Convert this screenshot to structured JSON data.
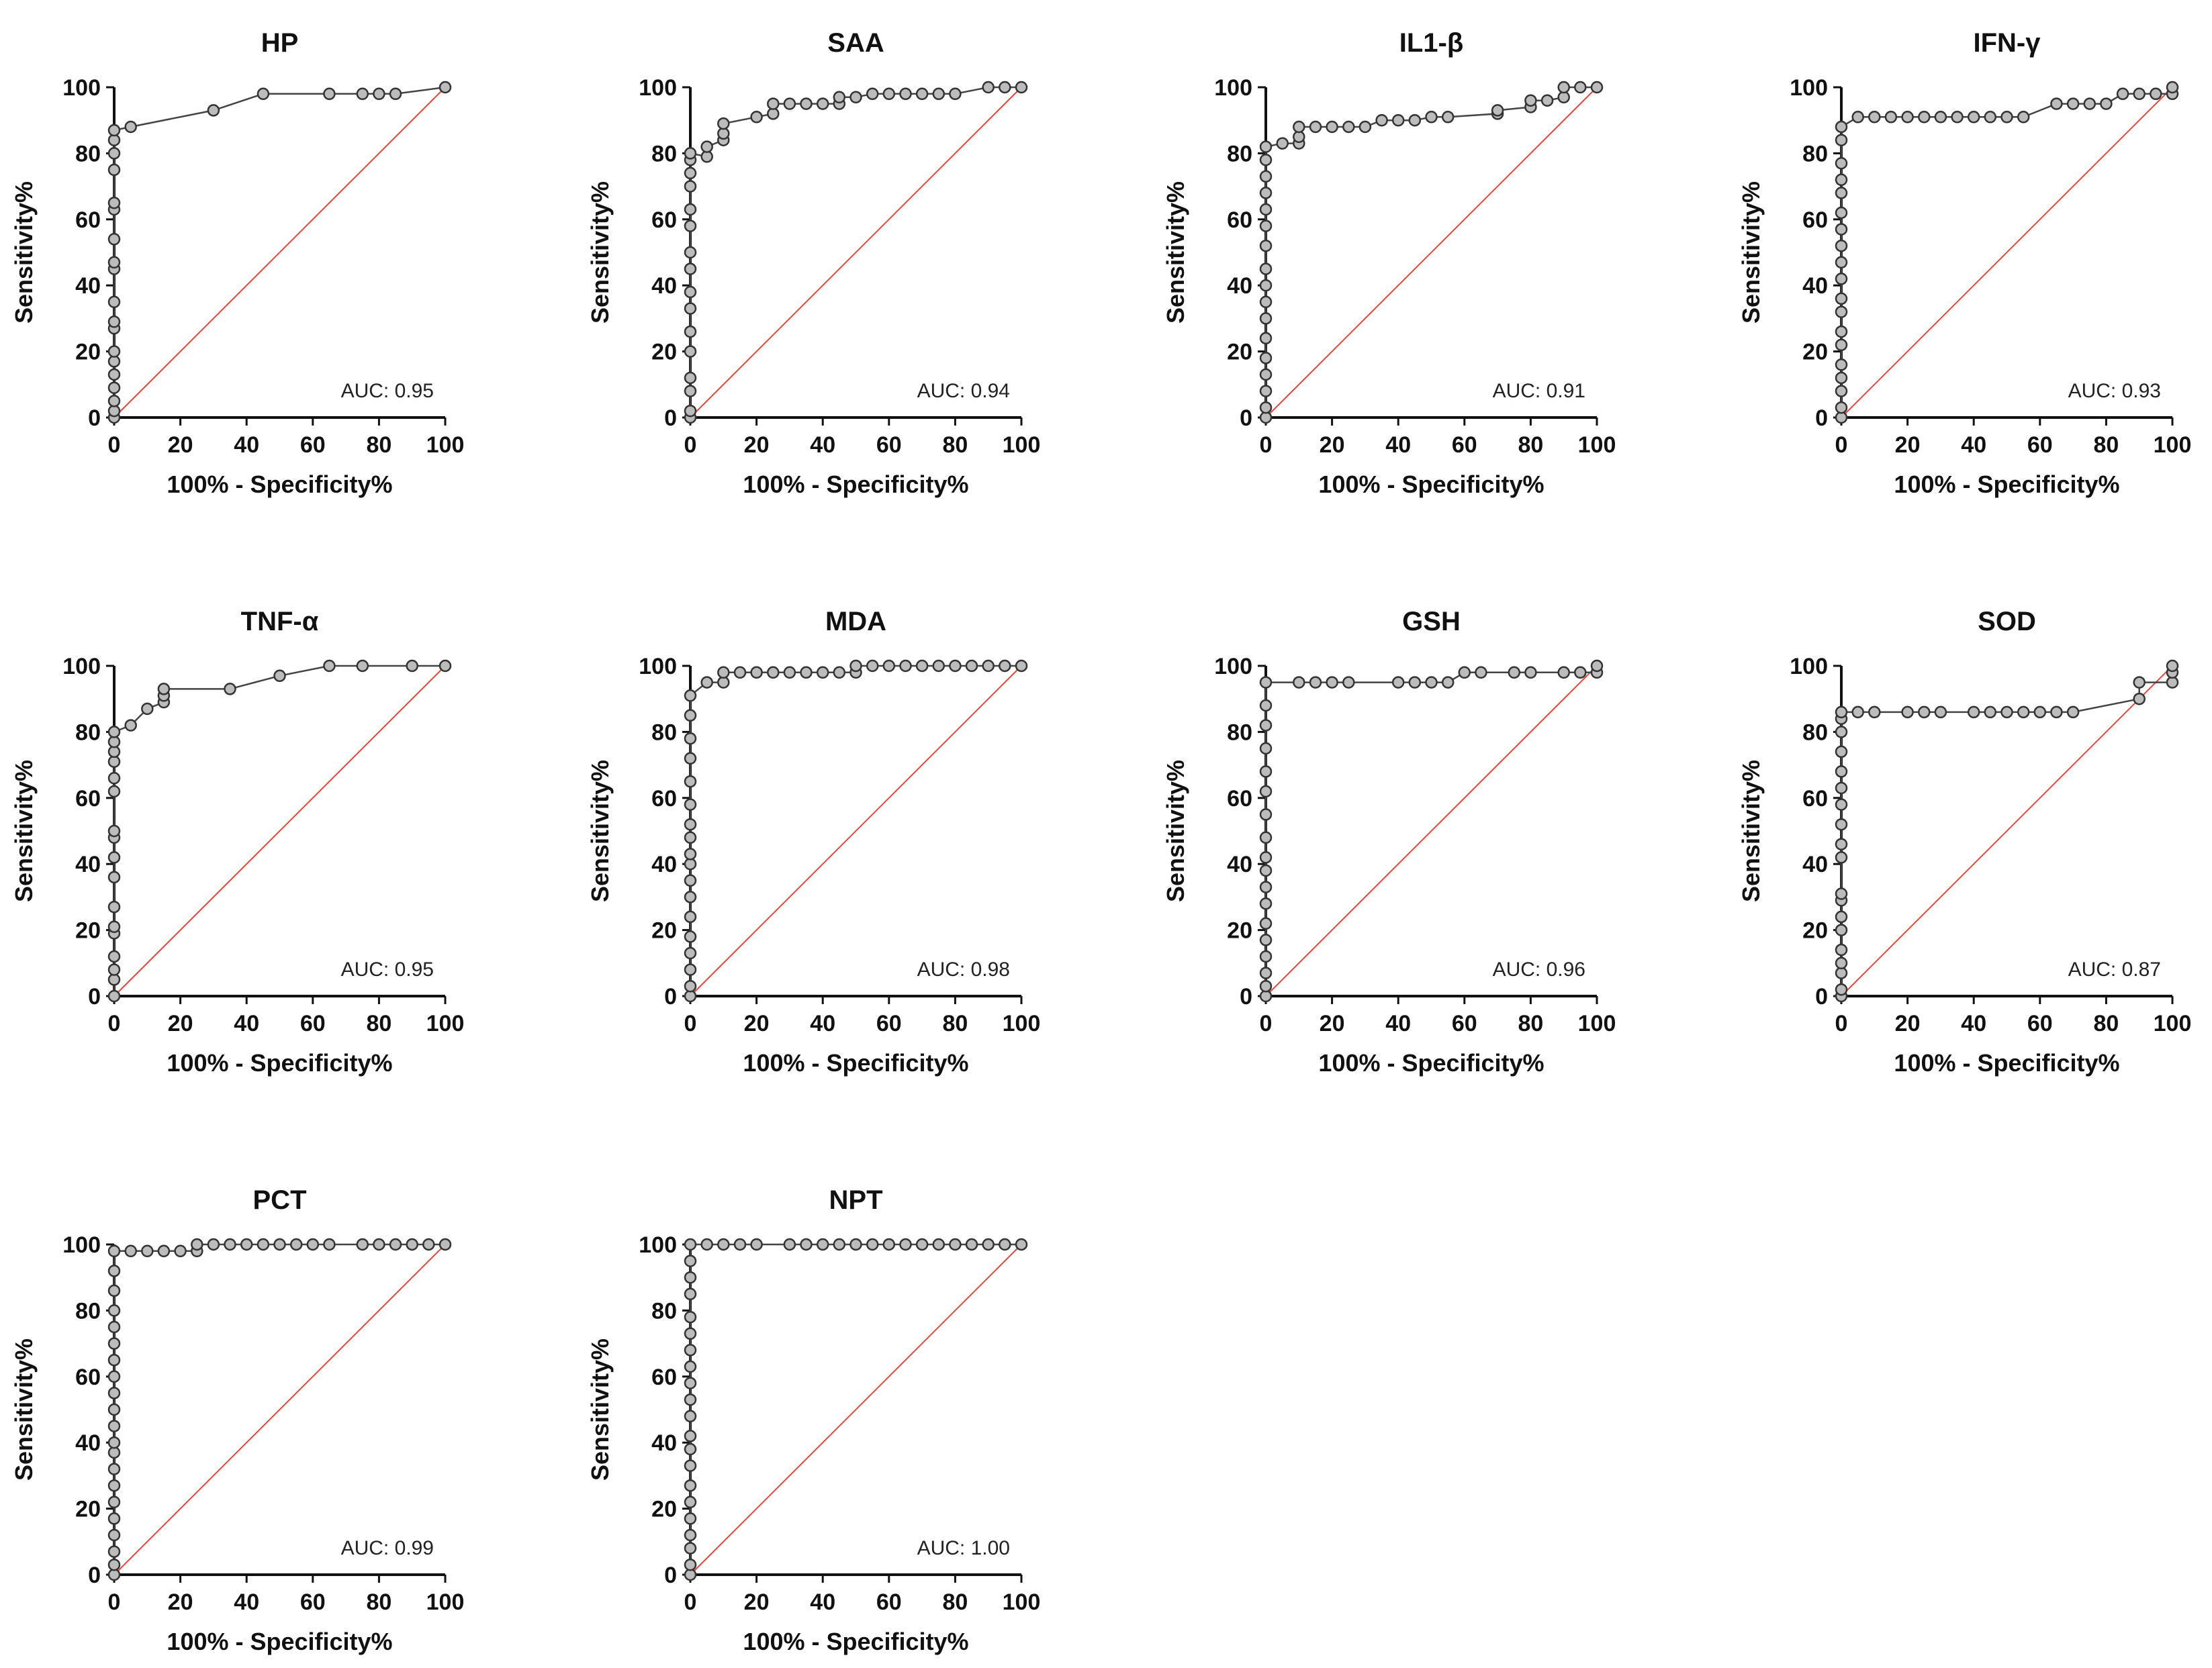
{
  "colors": {
    "roc_line": "#444444",
    "reference_line": "#e8453c",
    "marker_fill": "#bcbcbc",
    "marker_edge": "#333333",
    "axis": "#111111"
  },
  "chart_data": [
    {
      "type": "line",
      "title": "HP",
      "xlabel": "100% - Specificity%",
      "ylabel": "Sensitivity%",
      "xlim": [
        0,
        100
      ],
      "ylim": [
        0,
        100
      ],
      "xticks": [
        0,
        20,
        40,
        60,
        80,
        100
      ],
      "yticks": [
        0,
        20,
        40,
        60,
        80,
        100
      ],
      "auc_text": "AUC: 0.95",
      "x": [
        0,
        0,
        0,
        0,
        0,
        0,
        0,
        0,
        0,
        0,
        0,
        0,
        0,
        0,
        0,
        0,
        0,
        0,
        0,
        5,
        30,
        45,
        65,
        75,
        80,
        85,
        100
      ],
      "y": [
        0,
        2,
        5,
        9,
        13,
        17,
        20,
        27,
        29,
        35,
        45,
        47,
        54,
        63,
        65,
        75,
        80,
        84,
        87,
        88,
        93,
        98,
        98,
        98,
        98,
        98,
        100
      ]
    },
    {
      "type": "line",
      "title": "SAA",
      "xlabel": "100% - Specificity%",
      "ylabel": "Sensitivity%",
      "xlim": [
        0,
        100
      ],
      "ylim": [
        0,
        100
      ],
      "xticks": [
        0,
        20,
        40,
        60,
        80,
        100
      ],
      "yticks": [
        0,
        20,
        40,
        60,
        80,
        100
      ],
      "auc_text": "AUC: 0.94",
      "x": [
        0,
        0,
        0,
        0,
        0,
        0,
        0,
        0,
        0,
        0,
        0,
        0,
        0,
        0,
        0,
        0,
        5,
        5,
        10,
        10,
        10,
        20,
        25,
        25,
        30,
        35,
        40,
        45,
        45,
        50,
        55,
        60,
        65,
        70,
        75,
        80,
        90,
        95,
        100
      ],
      "y": [
        0,
        2,
        8,
        12,
        20,
        26,
        33,
        38,
        45,
        50,
        58,
        63,
        70,
        74,
        78,
        80,
        79,
        82,
        84,
        86,
        89,
        91,
        92,
        95,
        95,
        95,
        95,
        95,
        97,
        97,
        98,
        98,
        98,
        98,
        98,
        98,
        100,
        100,
        100
      ]
    },
    {
      "type": "line",
      "title": "IL1-β",
      "xlabel": "100% - Specificity%",
      "ylabel": "Sensitivity%",
      "xlim": [
        0,
        100
      ],
      "ylim": [
        0,
        100
      ],
      "xticks": [
        0,
        20,
        40,
        60,
        80,
        100
      ],
      "yticks": [
        0,
        20,
        40,
        60,
        80,
        100
      ],
      "auc_text": "AUC: 0.91",
      "x": [
        0,
        0,
        0,
        0,
        0,
        0,
        0,
        0,
        0,
        0,
        0,
        0,
        0,
        0,
        0,
        0,
        0,
        5,
        10,
        10,
        10,
        15,
        20,
        25,
        30,
        35,
        40,
        45,
        50,
        55,
        70,
        70,
        80,
        80,
        85,
        90,
        90,
        95,
        100
      ],
      "y": [
        0,
        3,
        8,
        13,
        18,
        24,
        30,
        35,
        40,
        45,
        52,
        58,
        63,
        68,
        73,
        78,
        82,
        83,
        83,
        85,
        88,
        88,
        88,
        88,
        88,
        90,
        90,
        90,
        91,
        91,
        92,
        93,
        94,
        96,
        96,
        97,
        100,
        100,
        100
      ]
    },
    {
      "type": "line",
      "title": "IFN-γ",
      "xlabel": "100% - Specificity%",
      "ylabel": "Sensitivity%",
      "xlim": [
        0,
        100
      ],
      "ylim": [
        0,
        100
      ],
      "xticks": [
        0,
        20,
        40,
        60,
        80,
        100
      ],
      "yticks": [
        0,
        20,
        40,
        60,
        80,
        100
      ],
      "auc_text": "AUC: 0.93",
      "x": [
        0,
        0,
        0,
        0,
        0,
        0,
        0,
        0,
        0,
        0,
        0,
        0,
        0,
        0,
        0,
        0,
        0,
        0,
        0,
        5,
        10,
        15,
        20,
        25,
        30,
        35,
        40,
        45,
        50,
        55,
        65,
        70,
        75,
        80,
        85,
        90,
        95,
        100,
        100
      ],
      "y": [
        0,
        3,
        8,
        12,
        16,
        22,
        26,
        32,
        36,
        42,
        47,
        52,
        57,
        62,
        68,
        72,
        77,
        84,
        88,
        91,
        91,
        91,
        91,
        91,
        91,
        91,
        91,
        91,
        91,
        91,
        95,
        95,
        95,
        95,
        98,
        98,
        98,
        98,
        100
      ]
    },
    {
      "type": "line",
      "title": "TNF-α",
      "xlabel": "100% - Specificity%",
      "ylabel": "Sensitivity%",
      "xlim": [
        0,
        100
      ],
      "ylim": [
        0,
        100
      ],
      "xticks": [
        0,
        20,
        40,
        60,
        80,
        100
      ],
      "yticks": [
        0,
        20,
        40,
        60,
        80,
        100
      ],
      "auc_text": "AUC: 0.95",
      "x": [
        0,
        0,
        0,
        0,
        0,
        0,
        0,
        0,
        0,
        0,
        0,
        0,
        0,
        0,
        0,
        0,
        0,
        5,
        10,
        15,
        15,
        15,
        35,
        50,
        65,
        75,
        90,
        100
      ],
      "y": [
        0,
        5,
        8,
        12,
        19,
        21,
        27,
        36,
        42,
        48,
        50,
        62,
        66,
        71,
        74,
        77,
        80,
        82,
        87,
        89,
        91,
        93,
        93,
        97,
        100,
        100,
        100,
        100
      ]
    },
    {
      "type": "line",
      "title": "MDA",
      "xlabel": "100% - Specificity%",
      "ylabel": "Sensitivity%",
      "xlim": [
        0,
        100
      ],
      "ylim": [
        0,
        100
      ],
      "xticks": [
        0,
        20,
        40,
        60,
        80,
        100
      ],
      "yticks": [
        0,
        20,
        40,
        60,
        80,
        100
      ],
      "auc_text": "AUC: 0.98",
      "x": [
        0,
        0,
        0,
        0,
        0,
        0,
        0,
        0,
        0,
        0,
        0,
        0,
        0,
        0,
        0,
        0,
        0,
        0,
        5,
        10,
        10,
        15,
        20,
        25,
        30,
        35,
        40,
        45,
        50,
        50,
        55,
        60,
        65,
        70,
        75,
        80,
        85,
        90,
        95,
        100
      ],
      "y": [
        0,
        3,
        8,
        13,
        18,
        24,
        30,
        35,
        40,
        43,
        48,
        52,
        58,
        65,
        72,
        78,
        85,
        91,
        95,
        95,
        98,
        98,
        98,
        98,
        98,
        98,
        98,
        98,
        98,
        100,
        100,
        100,
        100,
        100,
        100,
        100,
        100,
        100,
        100,
        100
      ]
    },
    {
      "type": "line",
      "title": "GSH",
      "xlabel": "100% - Specificity%",
      "ylabel": "Sensitivity%",
      "xlim": [
        0,
        100
      ],
      "ylim": [
        0,
        100
      ],
      "xticks": [
        0,
        20,
        40,
        60,
        80,
        100
      ],
      "yticks": [
        0,
        20,
        40,
        60,
        80,
        100
      ],
      "auc_text": "AUC: 0.96",
      "x": [
        0,
        0,
        0,
        0,
        0,
        0,
        0,
        0,
        0,
        0,
        0,
        0,
        0,
        0,
        0,
        0,
        0,
        0,
        10,
        15,
        20,
        25,
        40,
        45,
        50,
        55,
        60,
        65,
        75,
        80,
        90,
        95,
        100,
        100
      ],
      "y": [
        0,
        3,
        7,
        12,
        17,
        22,
        28,
        33,
        38,
        42,
        48,
        55,
        62,
        68,
        75,
        82,
        88,
        95,
        95,
        95,
        95,
        95,
        95,
        95,
        95,
        95,
        98,
        98,
        98,
        98,
        98,
        98,
        98,
        100
      ]
    },
    {
      "type": "line",
      "title": "SOD",
      "xlabel": "100% - Specificity%",
      "ylabel": "Sensitivity%",
      "xlim": [
        0,
        100
      ],
      "ylim": [
        0,
        100
      ],
      "xticks": [
        0,
        20,
        40,
        60,
        80,
        100
      ],
      "yticks": [
        0,
        20,
        40,
        60,
        80,
        100
      ],
      "auc_text": "AUC: 0.87",
      "x": [
        0,
        0,
        0,
        0,
        0,
        0,
        0,
        0,
        0,
        0,
        0,
        0,
        0,
        0,
        0,
        0,
        0,
        0,
        0,
        5,
        10,
        20,
        25,
        30,
        40,
        45,
        50,
        55,
        60,
        65,
        70,
        90,
        90,
        100,
        100,
        100
      ],
      "y": [
        0,
        2,
        7,
        10,
        14,
        20,
        24,
        29,
        31,
        42,
        46,
        52,
        58,
        63,
        68,
        74,
        80,
        84,
        86,
        86,
        86,
        86,
        86,
        86,
        86,
        86,
        86,
        86,
        86,
        86,
        86,
        90,
        95,
        95,
        98,
        100
      ]
    },
    {
      "type": "line",
      "title": "PCT",
      "xlabel": "100% - Specificity%",
      "ylabel": "Sensitivity%",
      "xlim": [
        0,
        100
      ],
      "ylim": [
        0,
        100
      ],
      "xticks": [
        0,
        20,
        40,
        60,
        80,
        100
      ],
      "yticks": [
        0,
        20,
        40,
        60,
        80,
        100
      ],
      "auc_text": "AUC: 0.99",
      "x": [
        0,
        0,
        0,
        0,
        0,
        0,
        0,
        0,
        0,
        0,
        0,
        0,
        0,
        0,
        0,
        0,
        0,
        0,
        0,
        0,
        0,
        5,
        10,
        15,
        20,
        25,
        25,
        30,
        35,
        40,
        45,
        50,
        55,
        60,
        65,
        75,
        80,
        85,
        90,
        95,
        100
      ],
      "y": [
        0,
        3,
        7,
        12,
        17,
        22,
        27,
        32,
        37,
        40,
        45,
        50,
        55,
        60,
        65,
        70,
        75,
        80,
        86,
        92,
        98,
        98,
        98,
        98,
        98,
        98,
        100,
        100,
        100,
        100,
        100,
        100,
        100,
        100,
        100,
        100,
        100,
        100,
        100,
        100,
        100
      ]
    },
    {
      "type": "line",
      "title": "NPT",
      "xlabel": "100% - Specificity%",
      "ylabel": "Sensitivity%",
      "xlim": [
        0,
        100
      ],
      "ylim": [
        0,
        100
      ],
      "xticks": [
        0,
        20,
        40,
        60,
        80,
        100
      ],
      "yticks": [
        0,
        20,
        40,
        60,
        80,
        100
      ],
      "auc_text": "AUC: 1.00",
      "x": [
        0,
        0,
        0,
        0,
        0,
        0,
        0,
        0,
        0,
        0,
        0,
        0,
        0,
        0,
        0,
        0,
        0,
        0,
        0,
        0,
        0,
        5,
        10,
        15,
        20,
        30,
        35,
        40,
        45,
        50,
        55,
        60,
        65,
        70,
        75,
        80,
        85,
        90,
        95,
        100
      ],
      "y": [
        0,
        3,
        8,
        12,
        17,
        22,
        27,
        33,
        38,
        42,
        48,
        53,
        58,
        63,
        68,
        73,
        78,
        85,
        90,
        95,
        100,
        100,
        100,
        100,
        100,
        100,
        100,
        100,
        100,
        100,
        100,
        100,
        100,
        100,
        100,
        100,
        100,
        100,
        100,
        100
      ]
    }
  ]
}
